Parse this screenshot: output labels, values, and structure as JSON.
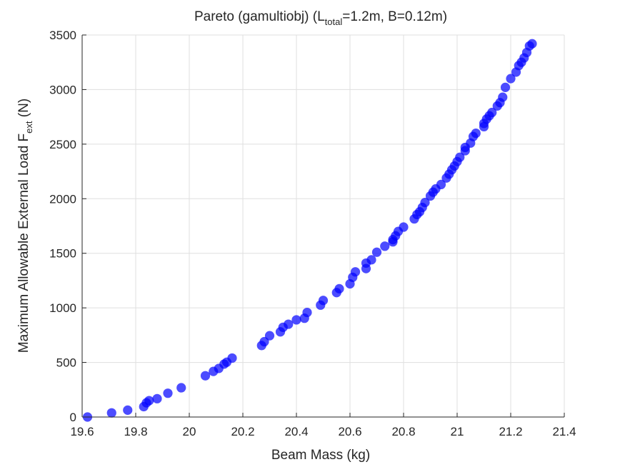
{
  "chart_data": {
    "type": "scatter",
    "title": {
      "prefix": "Pareto (gamultiobj) (L",
      "subscript": "total",
      "suffix": "=1.2m, B=0.12m)"
    },
    "xlabel": "Beam Mass (kg)",
    "ylabel": {
      "prefix": "Maximum Allowable External Load F",
      "subscript": "ext",
      "suffix": " (N)"
    },
    "xlim": [
      19.6,
      21.4
    ],
    "ylim": [
      0,
      3500
    ],
    "xticks": [
      19.6,
      19.8,
      20,
      20.2,
      20.4,
      20.6,
      20.8,
      21,
      21.2,
      21.4
    ],
    "xtick_labels": [
      "19.6",
      "19.8",
      "20",
      "20.2",
      "20.4",
      "20.6",
      "20.8",
      "21",
      "21.2",
      "21.4"
    ],
    "yticks": [
      0,
      500,
      1000,
      1500,
      2000,
      2500,
      3000,
      3500
    ],
    "ytick_labels": [
      "0",
      "500",
      "1000",
      "1500",
      "2000",
      "2500",
      "3000",
      "3500"
    ],
    "grid": true,
    "marker_color": "#0000ff",
    "marker_opacity": 0.7,
    "series": [
      {
        "points": [
          [
            19.62,
            0
          ],
          [
            19.71,
            38
          ],
          [
            19.77,
            63
          ],
          [
            19.83,
            95
          ],
          [
            19.84,
            130
          ],
          [
            19.85,
            150
          ],
          [
            19.88,
            168
          ],
          [
            19.92,
            218
          ],
          [
            19.97,
            268
          ],
          [
            20.06,
            378
          ],
          [
            20.09,
            418
          ],
          [
            20.11,
            445
          ],
          [
            20.13,
            485
          ],
          [
            20.14,
            502
          ],
          [
            20.16,
            540
          ],
          [
            20.27,
            655
          ],
          [
            20.28,
            690
          ],
          [
            20.3,
            745
          ],
          [
            20.34,
            780
          ],
          [
            20.35,
            822
          ],
          [
            20.37,
            850
          ],
          [
            20.4,
            890
          ],
          [
            20.43,
            905
          ],
          [
            20.44,
            958
          ],
          [
            20.49,
            1025
          ],
          [
            20.5,
            1068
          ],
          [
            20.55,
            1140
          ],
          [
            20.56,
            1175
          ],
          [
            20.6,
            1220
          ],
          [
            20.61,
            1280
          ],
          [
            20.62,
            1330
          ],
          [
            20.66,
            1360
          ],
          [
            20.66,
            1410
          ],
          [
            20.68,
            1440
          ],
          [
            20.7,
            1510
          ],
          [
            20.73,
            1565
          ],
          [
            20.76,
            1605
          ],
          [
            20.76,
            1625
          ],
          [
            20.77,
            1660
          ],
          [
            20.78,
            1700
          ],
          [
            20.8,
            1740
          ],
          [
            20.84,
            1815
          ],
          [
            20.85,
            1855
          ],
          [
            20.86,
            1880
          ],
          [
            20.87,
            1920
          ],
          [
            20.88,
            1965
          ],
          [
            20.9,
            2025
          ],
          [
            20.91,
            2060
          ],
          [
            20.92,
            2090
          ],
          [
            20.94,
            2130
          ],
          [
            20.96,
            2190
          ],
          [
            20.97,
            2225
          ],
          [
            20.98,
            2265
          ],
          [
            20.99,
            2300
          ],
          [
            21.0,
            2340
          ],
          [
            21.01,
            2380
          ],
          [
            21.03,
            2440
          ],
          [
            21.03,
            2470
          ],
          [
            21.05,
            2510
          ],
          [
            21.06,
            2570
          ],
          [
            21.07,
            2600
          ],
          [
            21.1,
            2660
          ],
          [
            21.1,
            2690
          ],
          [
            21.11,
            2730
          ],
          [
            21.12,
            2760
          ],
          [
            21.13,
            2790
          ],
          [
            21.15,
            2850
          ],
          [
            21.16,
            2880
          ],
          [
            21.17,
            2930
          ],
          [
            21.18,
            3020
          ],
          [
            21.2,
            3100
          ],
          [
            21.22,
            3160
          ],
          [
            21.23,
            3220
          ],
          [
            21.24,
            3250
          ],
          [
            21.25,
            3290
          ],
          [
            21.26,
            3340
          ],
          [
            21.27,
            3400
          ],
          [
            21.28,
            3420
          ]
        ]
      }
    ]
  }
}
